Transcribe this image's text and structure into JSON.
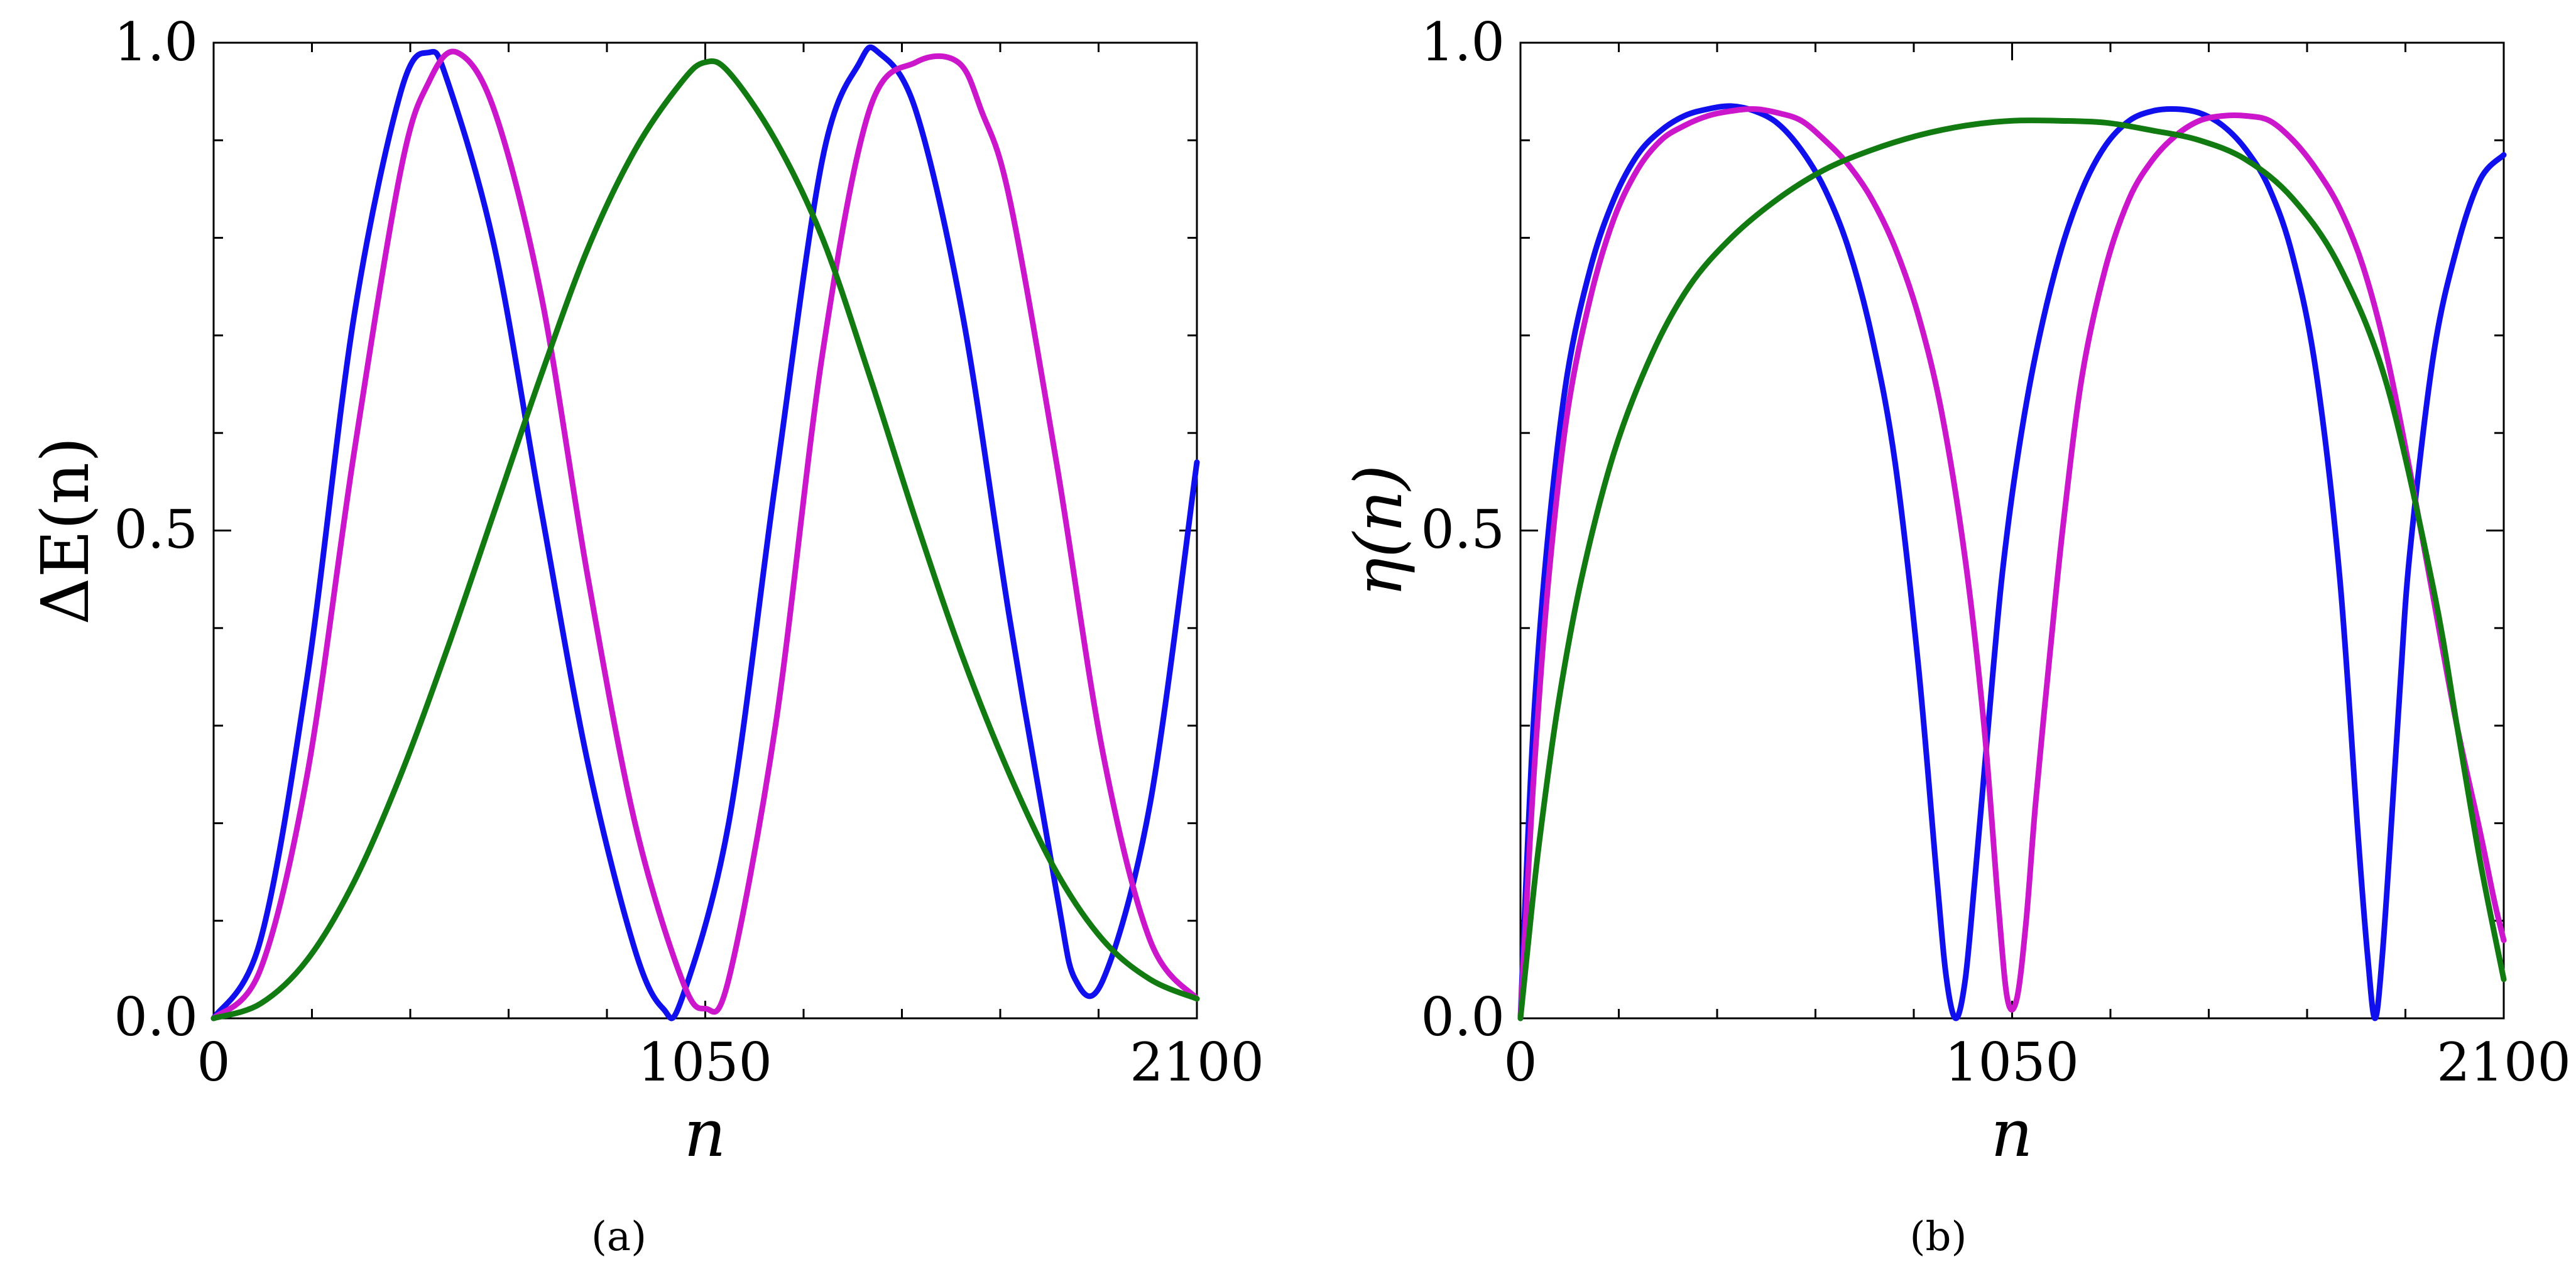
{
  "chart_data": [
    {
      "type": "line",
      "panel_label": "(a)",
      "xlabel": "n",
      "ylabel": "ΔE(n)",
      "xlim": [
        0,
        2100
      ],
      "ylim": [
        0,
        1
      ],
      "x_ticks": [
        "0",
        "1050",
        "2100"
      ],
      "y_ticks": [
        "0.0",
        "0.5",
        "1.0"
      ],
      "grid": false,
      "legend": "none",
      "series": [
        {
          "color": "#1010ee",
          "x": [
            0,
            100,
            200,
            300,
            400,
            460,
            500,
            600,
            700,
            800,
            900,
            960,
            1000,
            1100,
            1200,
            1300,
            1380,
            1420,
            1500,
            1600,
            1700,
            1800,
            1840,
            1900,
            2000,
            2100
          ],
          "y": [
            0,
            0.08,
            0.35,
            0.72,
            0.95,
            0.99,
            0.96,
            0.79,
            0.52,
            0.26,
            0.07,
            0.01,
            0.02,
            0.2,
            0.55,
            0.88,
            0.98,
            0.99,
            0.93,
            0.72,
            0.41,
            0.13,
            0.04,
            0.04,
            0.22,
            0.57
          ]
        },
        {
          "color": "#cc16cc",
          "x": [
            0,
            100,
            200,
            300,
            400,
            460,
            520,
            600,
            700,
            800,
            900,
            1000,
            1050,
            1100,
            1200,
            1300,
            1400,
            1500,
            1590,
            1640,
            1700,
            1800,
            1900,
            2000,
            2100
          ],
          "y": [
            0,
            0.05,
            0.25,
            0.58,
            0.87,
            0.96,
            0.99,
            0.93,
            0.74,
            0.45,
            0.2,
            0.04,
            0.01,
            0.04,
            0.3,
            0.68,
            0.93,
            0.98,
            0.98,
            0.93,
            0.84,
            0.57,
            0.27,
            0.08,
            0.02
          ]
        },
        {
          "color": "#117a11",
          "x": [
            0,
            100,
            200,
            300,
            400,
            500,
            600,
            700,
            800,
            900,
            1000,
            1050,
            1100,
            1200,
            1300,
            1400,
            1500,
            1600,
            1700,
            1800,
            1900,
            2000,
            2100
          ],
          "y": [
            0,
            0.015,
            0.06,
            0.14,
            0.25,
            0.38,
            0.52,
            0.66,
            0.79,
            0.89,
            0.96,
            0.98,
            0.97,
            0.9,
            0.8,
            0.66,
            0.51,
            0.37,
            0.25,
            0.15,
            0.08,
            0.04,
            0.02
          ]
        }
      ]
    },
    {
      "type": "line",
      "panel_label": "(b)",
      "xlabel": "n",
      "ylabel": "η(n)",
      "xlim": [
        0,
        2100
      ],
      "ylim": [
        0,
        1
      ],
      "x_ticks": [
        "0",
        "1050",
        "2100"
      ],
      "y_ticks": [
        "0.0",
        "0.5",
        "1.0"
      ],
      "grid": false,
      "legend": "none",
      "series": [
        {
          "color": "#1010ee",
          "x": [
            0,
            10,
            30,
            60,
            100,
            150,
            200,
            250,
            300,
            350,
            400,
            450,
            500,
            550,
            600,
            650,
            700,
            750,
            800,
            850,
            890,
            910,
            930,
            950,
            970,
            990,
            1010,
            1030,
            1060,
            1100,
            1150,
            1200,
            1250,
            1300,
            1350,
            1400,
            1450,
            1500,
            1550,
            1600,
            1650,
            1700,
            1750,
            1790,
            1810,
            1825,
            1840,
            1860,
            1880,
            1900,
            1950,
            2000,
            2050,
            2100
          ],
          "y": [
            0,
            0.12,
            0.32,
            0.5,
            0.66,
            0.77,
            0.84,
            0.885,
            0.91,
            0.925,
            0.932,
            0.935,
            0.93,
            0.917,
            0.89,
            0.85,
            0.79,
            0.7,
            0.57,
            0.36,
            0.14,
            0.04,
            0,
            0.04,
            0.14,
            0.25,
            0.36,
            0.46,
            0.57,
            0.68,
            0.78,
            0.85,
            0.895,
            0.92,
            0.93,
            0.932,
            0.928,
            0.915,
            0.89,
            0.85,
            0.78,
            0.66,
            0.45,
            0.18,
            0.06,
            0,
            0.06,
            0.2,
            0.35,
            0.48,
            0.68,
            0.79,
            0.86,
            0.885
          ]
        },
        {
          "color": "#cc16cc",
          "x": [
            0,
            10,
            30,
            60,
            100,
            150,
            200,
            250,
            300,
            350,
            400,
            450,
            500,
            550,
            600,
            650,
            700,
            750,
            800,
            850,
            900,
            950,
            990,
            1020,
            1040,
            1060,
            1080,
            1100,
            1130,
            1160,
            1200,
            1250,
            1300,
            1350,
            1400,
            1450,
            1500,
            1550,
            1600,
            1650,
            1700,
            1750,
            1800,
            1850,
            1900,
            1950,
            2000,
            2050,
            2080,
            2100
          ],
          "y": [
            0,
            0.09,
            0.26,
            0.45,
            0.62,
            0.74,
            0.82,
            0.87,
            0.9,
            0.915,
            0.925,
            0.93,
            0.932,
            0.928,
            0.92,
            0.9,
            0.875,
            0.84,
            0.79,
            0.72,
            0.62,
            0.47,
            0.3,
            0.12,
            0.02,
            0.02,
            0.1,
            0.22,
            0.37,
            0.51,
            0.66,
            0.77,
            0.84,
            0.88,
            0.905,
            0.92,
            0.925,
            0.925,
            0.92,
            0.9,
            0.87,
            0.83,
            0.77,
            0.68,
            0.56,
            0.43,
            0.3,
            0.19,
            0.12,
            0.08
          ]
        },
        {
          "color": "#117a11",
          "x": [
            0,
            15,
            40,
            80,
            130,
            200,
            280,
            360,
            450,
            550,
            650,
            750,
            850,
            950,
            1050,
            1150,
            1250,
            1350,
            1450,
            1550,
            1650,
            1750,
            1850,
            1950,
            2000,
            2050,
            2100
          ],
          "y": [
            0,
            0.07,
            0.18,
            0.32,
            0.45,
            0.58,
            0.68,
            0.75,
            0.8,
            0.84,
            0.87,
            0.89,
            0.905,
            0.915,
            0.92,
            0.92,
            0.918,
            0.91,
            0.9,
            0.88,
            0.84,
            0.77,
            0.65,
            0.44,
            0.3,
            0.16,
            0.04
          ]
        }
      ]
    }
  ]
}
